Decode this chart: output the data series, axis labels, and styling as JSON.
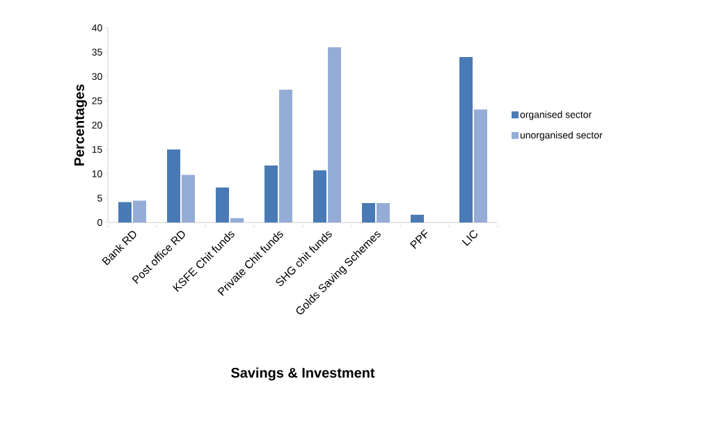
{
  "chart_data": {
    "type": "bar",
    "xlabel": "Savings & Investment",
    "ylabel": "Percentages",
    "categories": [
      "Bank RD",
      "Post office RD",
      "KSFE Chit funds",
      "Private Chit funds",
      "SHG chit funds",
      "Golds Saving Schemes",
      "PPF",
      "LIC"
    ],
    "series": [
      {
        "name": "organised sector",
        "color": "#4a7ab5",
        "values": [
          4.2,
          15,
          7.2,
          11.7,
          10.7,
          4,
          1.6,
          34
        ]
      },
      {
        "name": "unorganised sector",
        "color": "#95acd6",
        "values": [
          4.5,
          9.8,
          0.9,
          27.3,
          36,
          4,
          0,
          23.2
        ]
      }
    ],
    "ylim": [
      0,
      40
    ],
    "yticks": [
      0,
      5,
      10,
      15,
      20,
      25,
      30,
      35,
      40
    ],
    "grid": false,
    "legend": "right"
  }
}
